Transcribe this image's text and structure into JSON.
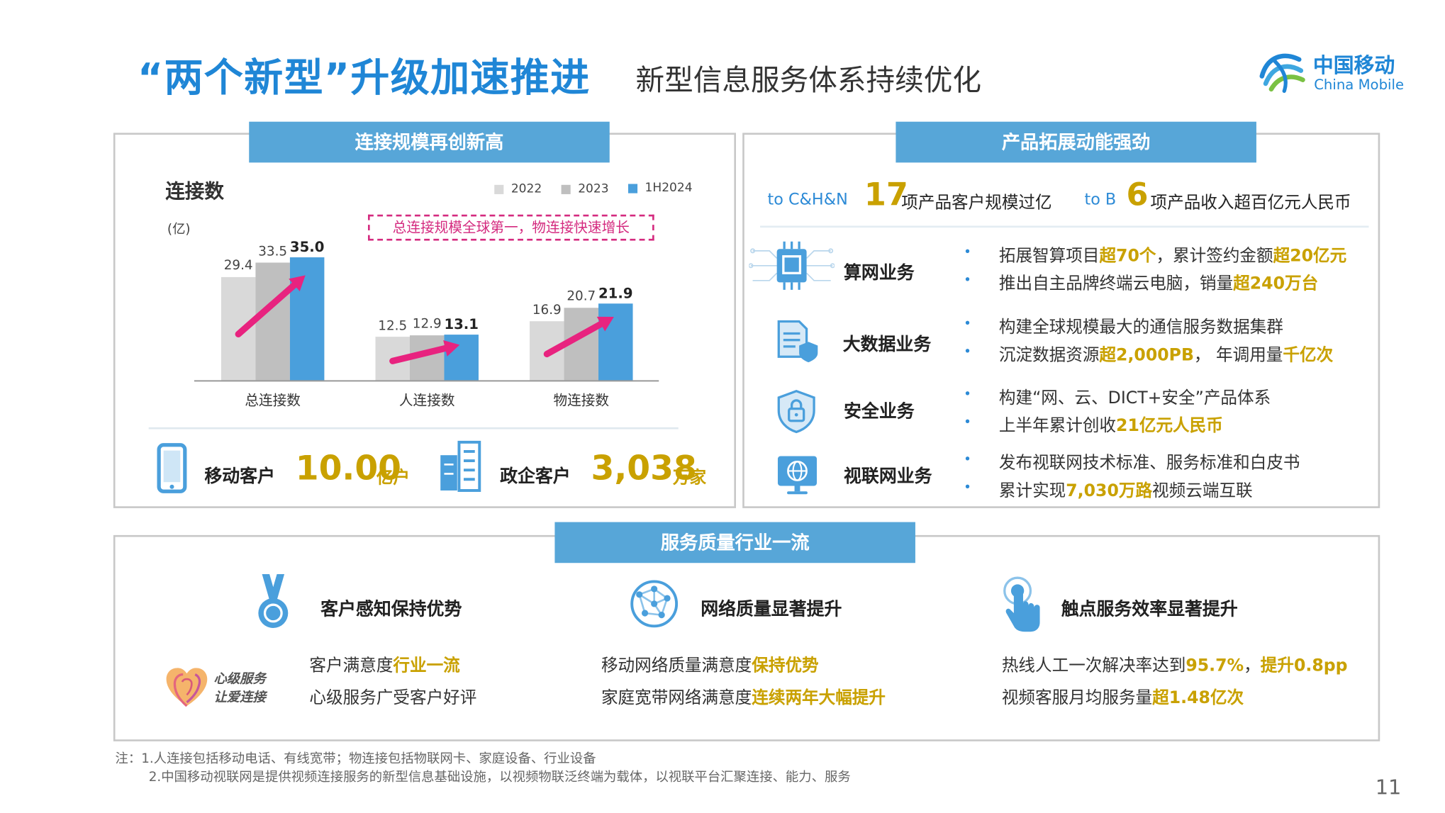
{
  "header": {
    "title_main": "“两个新型”升级加速推进",
    "title_sub": "新型信息服务体系持续优化",
    "logo_cn": "中国移动",
    "logo_en": "China Mobile"
  },
  "connections": {
    "tab": "连接规模再创新高",
    "chart_title": "连接数",
    "unit": "(亿)",
    "callout": "总连接规模全球第一，物连接快速增长",
    "customers": [
      {
        "label": "移动客户",
        "value": "10.00",
        "unit": "亿户"
      },
      {
        "label": "政企客户",
        "value": "3,038",
        "unit": "万家"
      }
    ]
  },
  "chart_data": {
    "type": "bar",
    "categories": [
      "总连接数",
      "人连接数",
      "物连接数"
    ],
    "series": [
      {
        "name": "2022",
        "values": [
          29.4,
          12.5,
          16.9
        ],
        "color": "#d9d9d9"
      },
      {
        "name": "2023",
        "values": [
          33.5,
          12.9,
          20.7
        ],
        "color": "#bfbfbf"
      },
      {
        "name": "1H2024",
        "values": [
          35.0,
          13.1,
          21.9
        ],
        "color": "#4a9fdc"
      }
    ],
    "value_labels": [
      [
        "29.4",
        "33.5",
        "35.0"
      ],
      [
        "12.5",
        "12.9",
        "13.1"
      ],
      [
        "16.9",
        "20.7",
        "21.9"
      ]
    ],
    "ylim": [
      0,
      35
    ],
    "legend": "top-right",
    "grid": false
  },
  "products": {
    "tab": "产品拓展动能强劲",
    "kpi": [
      {
        "prefix": "to C&H&N",
        "num": "17",
        "text": "项产品客户规模过亿"
      },
      {
        "prefix": "to B",
        "num": "6",
        "text": "项产品收入超百亿元人民币"
      }
    ],
    "rows": [
      {
        "icon": "chip-icon",
        "title": "算网业务",
        "lines": [
          [
            {
              "t": "拓展智算项目"
            },
            {
              "t": "超70个",
              "g": true
            },
            {
              "t": "，累计签约金额"
            },
            {
              "t": "超20亿元",
              "g": true
            }
          ],
          [
            {
              "t": "推出自主品牌终端云电脑，销量"
            },
            {
              "t": "超240万台",
              "g": true
            }
          ]
        ]
      },
      {
        "icon": "document-shield-icon",
        "title": "大数据业务",
        "lines": [
          [
            {
              "t": "构建全球规模最大的通信服务数据集群"
            }
          ],
          [
            {
              "t": "沉淀数据资源"
            },
            {
              "t": "超2,000PB",
              "g": true
            },
            {
              "t": "， 年调用量"
            },
            {
              "t": "千亿次",
              "g": true
            }
          ]
        ]
      },
      {
        "icon": "lock-shield-icon",
        "title": "安全业务",
        "lines": [
          [
            {
              "t": "构建“网、云、DICT+安全”产品体系"
            }
          ],
          [
            {
              "t": "上半年累计创收"
            },
            {
              "t": "21亿元人民币",
              "g": true
            }
          ]
        ]
      },
      {
        "icon": "globe-monitor-icon",
        "title": "视联网业务",
        "lines": [
          [
            {
              "t": "发布视联网技术标准、服务标准和白皮书"
            }
          ],
          [
            {
              "t": "累计实现"
            },
            {
              "t": "7,030万路",
              "g": true
            },
            {
              "t": "视频云端互联"
            }
          ]
        ]
      }
    ]
  },
  "service": {
    "tab": "服务质量行业一流",
    "slogan_line1": "心级服务",
    "slogan_line2": "让爱连接",
    "cols": [
      {
        "icon": "medal-icon",
        "title": "客户感知保持优势",
        "lines": [
          [
            {
              "t": "客户满意度"
            },
            {
              "t": "行业一流",
              "g": true
            }
          ],
          [
            {
              "t": "心级服务广受客户好评"
            }
          ]
        ]
      },
      {
        "icon": "network-globe-icon",
        "title": "网络质量显著提升",
        "lines": [
          [
            {
              "t": "移动网络质量满意度"
            },
            {
              "t": "保持优势",
              "g": true
            }
          ],
          [
            {
              "t": "家庭宽带网络满意度"
            },
            {
              "t": "连续两年大幅提升",
              "g": true
            }
          ]
        ]
      },
      {
        "icon": "touch-hand-icon",
        "title": "触点服务效率显著提升",
        "lines": [
          [
            {
              "t": "热线人工一次解决率达到"
            },
            {
              "t": "95.7%",
              "g": true
            },
            {
              "t": "，"
            },
            {
              "t": "提升0.8pp",
              "g": true
            }
          ],
          [
            {
              "t": "视频客服月均服务量"
            },
            {
              "t": "超1.48亿次",
              "g": true
            }
          ]
        ]
      }
    ]
  },
  "notes": [
    "注：1.人连接包括移动电话、有线宽带；物连接包括物联网卡、家庭设备、行业设备",
    "2.中国移动视联网是提供视频连接服务的新型信息基础设施，以视频物联泛终端为载体，以视联平台汇聚连接、能力、服务"
  ],
  "page_number": "11",
  "colors": {
    "accent": "#1f86d6",
    "tab": "#57a6d8",
    "highlight": "#c9a100",
    "arrow": "#e8237f"
  }
}
